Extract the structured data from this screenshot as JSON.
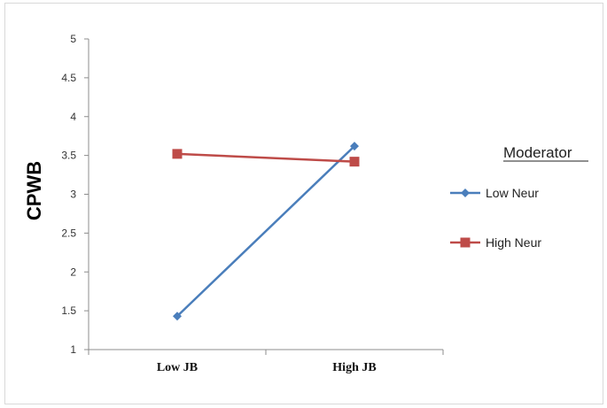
{
  "chart_data": {
    "type": "line",
    "categories": [
      "Low JB",
      "High JB"
    ],
    "series": [
      {
        "name": "Low Neur",
        "values": [
          1.43,
          3.62
        ],
        "color": "#4a7ebb",
        "marker": "diamond"
      },
      {
        "name": "High Neur",
        "values": [
          3.52,
          3.42
        ],
        "color": "#be4b48",
        "marker": "square"
      }
    ],
    "title": "",
    "xlabel": "",
    "ylabel": "CPWB",
    "ylim": [
      1,
      5
    ],
    "yticks": [
      "1",
      "1.5",
      "2",
      "2.5",
      "3",
      "3.5",
      "4",
      "4.5",
      "5"
    ],
    "grid": false,
    "legend": {
      "title": "Moderator",
      "placement": "right"
    }
  }
}
